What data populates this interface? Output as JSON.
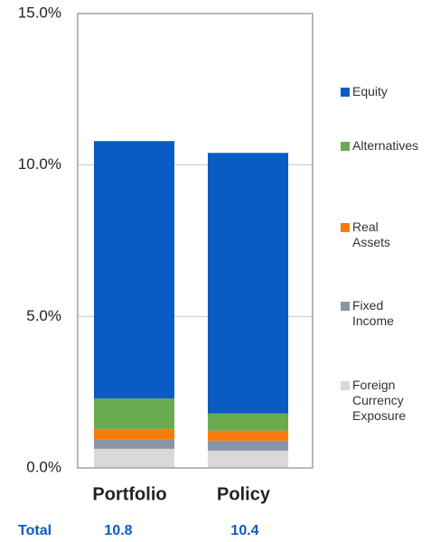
{
  "chart_data": {
    "type": "stacked_bar",
    "categories": [
      "Portfolio",
      "Policy"
    ],
    "series": [
      {
        "name": "Foreign Currency Exposure",
        "color": "#d9d9d9",
        "values": [
          0.63,
          0.57
        ]
      },
      {
        "name": "Fixed Income",
        "color": "#8a96a3",
        "values": [
          0.3,
          0.33
        ]
      },
      {
        "name": "Real Assets",
        "color": "#f97b0c",
        "values": [
          0.36,
          0.33
        ]
      },
      {
        "name": "Alternatives",
        "color": "#6aab4f",
        "values": [
          1.0,
          0.57
        ]
      },
      {
        "name": "Equity",
        "color": "#0a5bc4",
        "values": [
          8.5,
          8.6
        ]
      }
    ],
    "ylim": [
      0,
      15
    ],
    "yticks": [
      {
        "value": 0,
        "label": "0.0%"
      },
      {
        "value": 5,
        "label": "5.0%"
      },
      {
        "value": 10,
        "label": "10.0%"
      },
      {
        "value": 15,
        "label": "15.0%"
      }
    ],
    "grid": true,
    "totals": {
      "label": "Total",
      "values": [
        "10.8",
        "10.4"
      ]
    }
  }
}
